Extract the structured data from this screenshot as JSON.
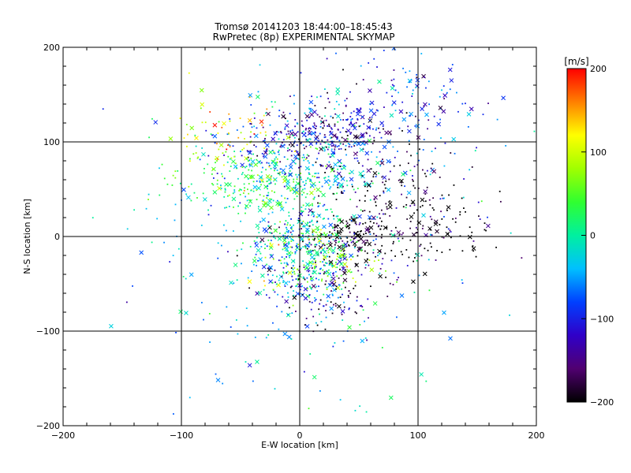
{
  "chart_data": {
    "type": "scatter",
    "title": "Tromsø 20141203 18:44:00–18:45:43",
    "subtitle": "RwPretec (8p) EXPERIMENTAL SKYMAP",
    "xlabel": "E-W location [km]",
    "ylabel": "N-S location [km]",
    "xlim": [
      -200,
      200
    ],
    "ylim": [
      -200,
      200
    ],
    "xticks": [
      "−200",
      "−100",
      "0",
      "100",
      "200"
    ],
    "yticks": [
      "−200",
      "−100",
      "0",
      "100",
      "200"
    ],
    "grid_x": [
      -100,
      0,
      100
    ],
    "grid_y": [
      -100,
      0,
      100
    ],
    "colorbar": {
      "label": "[m/s]",
      "range": [
        -200,
        200
      ],
      "ticks": [
        "200",
        "100",
        "0",
        "−100",
        "−200"
      ],
      "colormap": "black-purple-blue-cyan-green-yellow-red"
    },
    "marker_types": [
      "dot",
      "cross"
    ],
    "clusters": [
      {
        "cx": 0,
        "cy": 100,
        "sx": 35,
        "sy": 18,
        "v": -100
      },
      {
        "cx": 25,
        "cy": 110,
        "sx": 25,
        "sy": 15,
        "v": -140
      },
      {
        "cx": 90,
        "cy": 140,
        "sx": 40,
        "sy": 25,
        "v": -90
      },
      {
        "cx": -40,
        "cy": 60,
        "sx": 30,
        "sy": 20,
        "v": 30
      },
      {
        "cx": 10,
        "cy": 60,
        "sx": 30,
        "sy": 18,
        "v": -20
      },
      {
        "cx": -60,
        "cy": 110,
        "sx": 25,
        "sy": 20,
        "v": 110
      },
      {
        "cx": 40,
        "cy": 0,
        "sx": 25,
        "sy": 18,
        "v": -200
      },
      {
        "cx": 115,
        "cy": 0,
        "sx": 25,
        "sy": 18,
        "v": -200
      },
      {
        "cx": 0,
        "cy": 0,
        "sx": 22,
        "sy": 14,
        "v": -10
      },
      {
        "cx": 0,
        "cy": -40,
        "sx": 20,
        "sy": 20,
        "v": -60
      },
      {
        "cx": 15,
        "cy": -25,
        "sx": 25,
        "sy": 20,
        "v": 50
      },
      {
        "cx": 80,
        "cy": 40,
        "sx": 35,
        "sy": 30,
        "v": -190
      },
      {
        "cx": 20,
        "cy": -60,
        "sx": 25,
        "sy": 20,
        "v": -170
      },
      {
        "cx": 0,
        "cy": 0,
        "sx": 80,
        "sy": 80,
        "v": -40
      }
    ]
  }
}
